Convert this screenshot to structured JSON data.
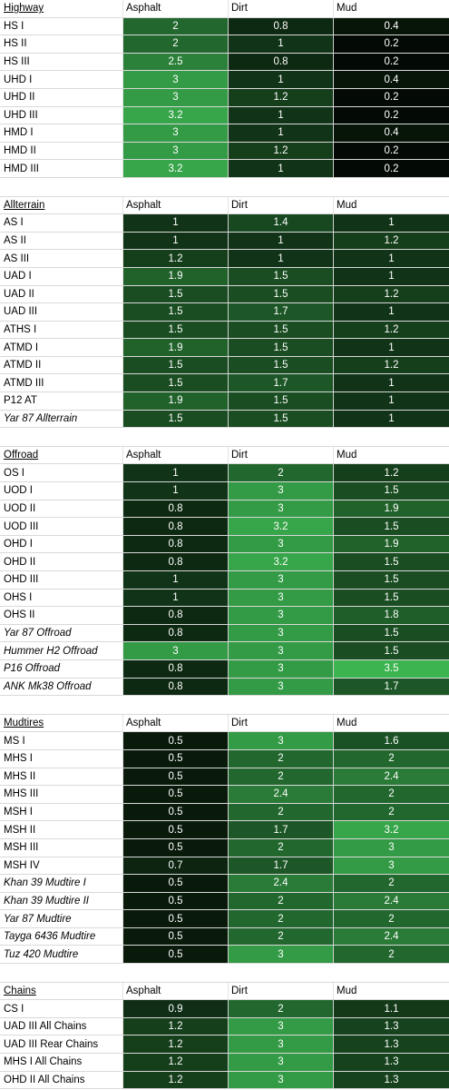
{
  "columns": [
    "Asphalt",
    "Dirt",
    "Mud"
  ],
  "sections": [
    {
      "title": "Highway",
      "rows": [
        {
          "name": "HS I",
          "italic": false,
          "values": [
            "2",
            "0.8",
            "0.4"
          ]
        },
        {
          "name": "HS II",
          "italic": false,
          "values": [
            "2",
            "1",
            "0.2"
          ]
        },
        {
          "name": "HS III",
          "italic": false,
          "values": [
            "2.5",
            "0.8",
            "0.2"
          ]
        },
        {
          "name": "UHD I",
          "italic": false,
          "values": [
            "3",
            "1",
            "0.4"
          ]
        },
        {
          "name": "UHD II",
          "italic": false,
          "values": [
            "3",
            "1.2",
            "0.2"
          ]
        },
        {
          "name": "UHD III",
          "italic": false,
          "values": [
            "3.2",
            "1",
            "0.2"
          ]
        },
        {
          "name": "HMD I",
          "italic": false,
          "values": [
            "3",
            "1",
            "0.4"
          ]
        },
        {
          "name": "HMD II",
          "italic": false,
          "values": [
            "3",
            "1.2",
            "0.2"
          ]
        },
        {
          "name": "HMD III",
          "italic": false,
          "values": [
            "3.2",
            "1",
            "0.2"
          ]
        }
      ]
    },
    {
      "title": "Allterrain",
      "rows": [
        {
          "name": "AS I",
          "italic": false,
          "values": [
            "1",
            "1.4",
            "1"
          ]
        },
        {
          "name": "AS II",
          "italic": false,
          "values": [
            "1",
            "1",
            "1.2"
          ]
        },
        {
          "name": "AS III",
          "italic": false,
          "values": [
            "1.2",
            "1",
            "1"
          ]
        },
        {
          "name": "UAD I",
          "italic": false,
          "values": [
            "1.9",
            "1.5",
            "1"
          ]
        },
        {
          "name": "UAD II",
          "italic": false,
          "values": [
            "1.5",
            "1.5",
            "1.2"
          ]
        },
        {
          "name": "UAD III",
          "italic": false,
          "values": [
            "1.5",
            "1.7",
            "1"
          ]
        },
        {
          "name": "ATHS I",
          "italic": false,
          "values": [
            "1.5",
            "1.5",
            "1.2"
          ]
        },
        {
          "name": "ATMD I",
          "italic": false,
          "values": [
            "1.9",
            "1.5",
            "1"
          ]
        },
        {
          "name": "ATMD II",
          "italic": false,
          "values": [
            "1.5",
            "1.5",
            "1.2"
          ]
        },
        {
          "name": "ATMD III",
          "italic": false,
          "values": [
            "1.5",
            "1.7",
            "1"
          ]
        },
        {
          "name": "P12 AT",
          "italic": false,
          "values": [
            "1.9",
            "1.5",
            "1"
          ]
        },
        {
          "name": "Yar 87 Allterrain",
          "italic": true,
          "values": [
            "1.5",
            "1.5",
            "1"
          ]
        }
      ]
    },
    {
      "title": "Offroad",
      "rows": [
        {
          "name": "OS I",
          "italic": false,
          "values": [
            "1",
            "2",
            "1.2"
          ]
        },
        {
          "name": "UOD I",
          "italic": false,
          "values": [
            "1",
            "3",
            "1.5"
          ]
        },
        {
          "name": "UOD II",
          "italic": false,
          "values": [
            "0.8",
            "3",
            "1.9"
          ]
        },
        {
          "name": "UOD III",
          "italic": false,
          "values": [
            "0.8",
            "3.2",
            "1.5"
          ]
        },
        {
          "name": "OHD I",
          "italic": false,
          "values": [
            "0.8",
            "3",
            "1.9"
          ]
        },
        {
          "name": "OHD II",
          "italic": false,
          "values": [
            "0.8",
            "3.2",
            "1.5"
          ]
        },
        {
          "name": "OHD III",
          "italic": false,
          "values": [
            "1",
            "3",
            "1.5"
          ]
        },
        {
          "name": "OHS I",
          "italic": false,
          "values": [
            "1",
            "3",
            "1.5"
          ]
        },
        {
          "name": "OHS II",
          "italic": false,
          "values": [
            "0.8",
            "3",
            "1.8"
          ]
        },
        {
          "name": "Yar 87 Offroad",
          "italic": true,
          "values": [
            "0.8",
            "3",
            "1.5"
          ]
        },
        {
          "name": "Hummer H2 Offroad",
          "italic": true,
          "values": [
            "3",
            "3",
            "1.5"
          ]
        },
        {
          "name": "P16 Offroad",
          "italic": true,
          "values": [
            "0.8",
            "3",
            "3.5"
          ]
        },
        {
          "name": "ANK Mk38 Offroad",
          "italic": true,
          "values": [
            "0.8",
            "3",
            "1.7"
          ]
        }
      ]
    },
    {
      "title": "Mudtires",
      "rows": [
        {
          "name": "MS I",
          "italic": false,
          "values": [
            "0.5",
            "3",
            "1.6"
          ]
        },
        {
          "name": "MHS I",
          "italic": false,
          "values": [
            "0.5",
            "2",
            "2"
          ]
        },
        {
          "name": "MHS II",
          "italic": false,
          "values": [
            "0.5",
            "2",
            "2.4"
          ]
        },
        {
          "name": "MHS III",
          "italic": false,
          "values": [
            "0.5",
            "2.4",
            "2"
          ]
        },
        {
          "name": "MSH I",
          "italic": false,
          "values": [
            "0.5",
            "2",
            "2"
          ]
        },
        {
          "name": "MSH II",
          "italic": false,
          "values": [
            "0.5",
            "1.7",
            "3.2"
          ]
        },
        {
          "name": "MSH III",
          "italic": false,
          "values": [
            "0.5",
            "2",
            "3"
          ]
        },
        {
          "name": "MSH IV",
          "italic": false,
          "values": [
            "0.7",
            "1.7",
            "3"
          ]
        },
        {
          "name": "Khan 39 Mudtire I",
          "italic": true,
          "values": [
            "0.5",
            "2.4",
            "2"
          ]
        },
        {
          "name": "Khan 39 Mudtire II",
          "italic": true,
          "values": [
            "0.5",
            "2",
            "2.4"
          ]
        },
        {
          "name": "Yar 87 Mudtire",
          "italic": true,
          "values": [
            "0.5",
            "2",
            "2"
          ]
        },
        {
          "name": "Tayga 6436 Mudtire",
          "italic": true,
          "values": [
            "0.5",
            "2",
            "2.4"
          ]
        },
        {
          "name": "Tuz 420 Mudtire",
          "italic": true,
          "values": [
            "0.5",
            "3",
            "2"
          ]
        }
      ]
    },
    {
      "title": "Chains",
      "rows": [
        {
          "name": "CS I",
          "italic": false,
          "values": [
            "0.9",
            "2",
            "1.1"
          ]
        },
        {
          "name": "UAD III All Chains",
          "italic": false,
          "values": [
            "1.2",
            "3",
            "1.3"
          ]
        },
        {
          "name": "UAD III Rear Chains",
          "italic": false,
          "values": [
            "1.2",
            "3",
            "1.3"
          ]
        },
        {
          "name": "MHS I All Chains",
          "italic": false,
          "values": [
            "1.2",
            "3",
            "1.3"
          ]
        },
        {
          "name": "OHD II All Chains",
          "italic": false,
          "values": [
            "1.2",
            "3",
            "1.3"
          ]
        }
      ]
    }
  ]
}
